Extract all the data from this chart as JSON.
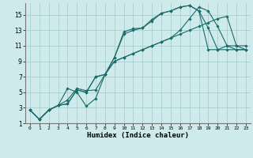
{
  "xlabel": "Humidex (Indice chaleur)",
  "xlim": [
    -0.5,
    23.5
  ],
  "ylim": [
    1,
    16.5
  ],
  "xticks": [
    0,
    1,
    2,
    3,
    4,
    5,
    6,
    7,
    8,
    9,
    10,
    11,
    12,
    13,
    14,
    15,
    16,
    17,
    18,
    19,
    20,
    21,
    22,
    23
  ],
  "yticks": [
    1,
    3,
    5,
    7,
    9,
    11,
    13,
    15
  ],
  "bg_color": "#ceeaea",
  "grid_color": "#aacfcf",
  "line_color": "#1a6b6b",
  "series1": [
    [
      0,
      2.7
    ],
    [
      1,
      1.5
    ],
    [
      2,
      2.7
    ],
    [
      3,
      3.3
    ],
    [
      4,
      4.0
    ],
    [
      5,
      5.5
    ],
    [
      6,
      5.2
    ],
    [
      7,
      5.3
    ],
    [
      8,
      7.3
    ],
    [
      9,
      9.5
    ],
    [
      10,
      12.5
    ],
    [
      11,
      13.0
    ],
    [
      12,
      13.3
    ],
    [
      13,
      14.2
    ],
    [
      14,
      15.2
    ],
    [
      15,
      15.5
    ],
    [
      16,
      16.0
    ],
    [
      17,
      16.2
    ],
    [
      18,
      15.5
    ],
    [
      19,
      13.3
    ],
    [
      20,
      10.5
    ],
    [
      21,
      11.0
    ],
    [
      22,
      11.0
    ],
    [
      23,
      11.0
    ]
  ],
  "series2": [
    [
      0,
      2.7
    ],
    [
      1,
      1.5
    ],
    [
      2,
      2.7
    ],
    [
      3,
      3.3
    ],
    [
      4,
      5.5
    ],
    [
      5,
      5.0
    ],
    [
      6,
      3.2
    ],
    [
      7,
      4.2
    ],
    [
      8,
      7.3
    ],
    [
      9,
      9.5
    ],
    [
      10,
      12.8
    ],
    [
      11,
      13.2
    ],
    [
      12,
      13.3
    ],
    [
      13,
      14.4
    ],
    [
      14,
      15.2
    ],
    [
      15,
      15.5
    ],
    [
      16,
      16.0
    ],
    [
      17,
      16.2
    ],
    [
      18,
      15.5
    ],
    [
      19,
      10.5
    ],
    [
      20,
      10.5
    ],
    [
      21,
      10.5
    ],
    [
      22,
      10.5
    ],
    [
      23,
      10.5
    ]
  ],
  "series3": [
    [
      0,
      2.7
    ],
    [
      1,
      1.5
    ],
    [
      2,
      2.7
    ],
    [
      3,
      3.3
    ],
    [
      4,
      3.5
    ],
    [
      5,
      5.3
    ],
    [
      6,
      5.0
    ],
    [
      7,
      7.0
    ],
    [
      8,
      7.3
    ],
    [
      9,
      9.0
    ],
    [
      10,
      9.5
    ],
    [
      11,
      10.0
    ],
    [
      12,
      10.5
    ],
    [
      13,
      11.0
    ],
    [
      14,
      11.5
    ],
    [
      15,
      12.0
    ],
    [
      16,
      13.0
    ],
    [
      17,
      14.5
    ],
    [
      18,
      16.0
    ],
    [
      19,
      15.5
    ],
    [
      20,
      13.5
    ],
    [
      21,
      11.0
    ],
    [
      22,
      10.5
    ],
    [
      23,
      10.5
    ]
  ],
  "series4": [
    [
      0,
      2.7
    ],
    [
      1,
      1.5
    ],
    [
      2,
      2.7
    ],
    [
      3,
      3.3
    ],
    [
      4,
      3.5
    ],
    [
      5,
      5.3
    ],
    [
      6,
      5.0
    ],
    [
      7,
      7.0
    ],
    [
      8,
      7.3
    ],
    [
      9,
      9.0
    ],
    [
      10,
      9.5
    ],
    [
      11,
      10.0
    ],
    [
      12,
      10.5
    ],
    [
      13,
      11.0
    ],
    [
      14,
      11.5
    ],
    [
      15,
      12.0
    ],
    [
      16,
      12.5
    ],
    [
      17,
      13.0
    ],
    [
      18,
      13.5
    ],
    [
      19,
      14.0
    ],
    [
      20,
      14.5
    ],
    [
      21,
      14.8
    ],
    [
      22,
      11.0
    ],
    [
      23,
      10.5
    ]
  ]
}
